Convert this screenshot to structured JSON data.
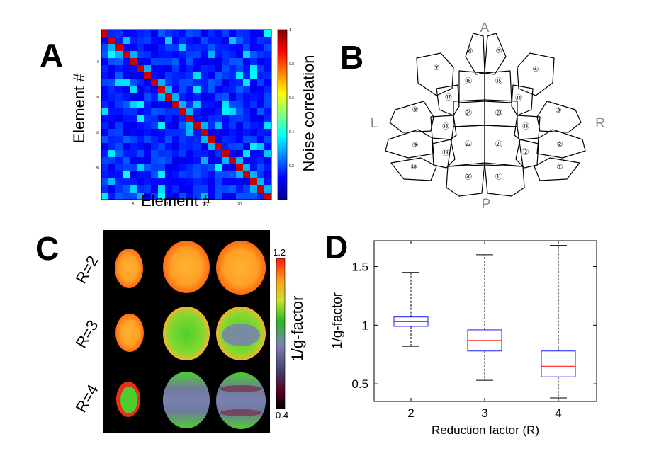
{
  "panels": {
    "a": {
      "letter": "A",
      "xlabel": "Element #",
      "ylabel": "Element #",
      "colorbar_label": "Noise correlation",
      "colorbar_ticks": [
        "1",
        "0.8",
        "0.6",
        "0.4",
        "0.2"
      ],
      "x_ticks": [
        "5",
        "10",
        "15",
        "20"
      ],
      "y_ticks": [
        "5",
        "10",
        "15",
        "20"
      ],
      "matrix_size": 24,
      "colormap": "jet"
    },
    "b": {
      "letter": "B",
      "dir_a": "A",
      "dir_p": "P",
      "dir_l": "L",
      "dir_r": "R",
      "elements": [
        "①",
        "②",
        "③",
        "④",
        "⑤",
        "⑥",
        "⑦",
        "⑧",
        "⑨",
        "⑩",
        "⑪",
        "⑫",
        "⑬",
        "⑭",
        "⑮",
        "⑯",
        "⑰",
        "⑱",
        "⑲",
        "⑳",
        "㉑",
        "㉒",
        "㉓",
        "㉔"
      ]
    },
    "c": {
      "letter": "C",
      "rows": [
        "R=2",
        "R=3",
        "R=4"
      ],
      "colorbar_label": "1/g-factor",
      "colorbar_max": "1.2",
      "colorbar_min": "0.4"
    },
    "d": {
      "letter": "D"
    }
  },
  "chart_data": {
    "type": "box",
    "xlabel": "Reduction factor (R)",
    "ylabel": "1/g-factor",
    "categories": [
      "2",
      "3",
      "4"
    ],
    "ylim": [
      0.35,
      1.72
    ],
    "yticks": [
      0.5,
      1,
      1.5
    ],
    "ytick_labels": [
      "0.5",
      "1",
      "1.5"
    ],
    "boxes": [
      {
        "label": "2",
        "whisker_low": 0.82,
        "q1": 0.99,
        "median": 1.03,
        "q3": 1.07,
        "whisker_high": 1.45
      },
      {
        "label": "3",
        "whisker_low": 0.53,
        "q1": 0.78,
        "median": 0.87,
        "q3": 0.96,
        "whisker_high": 1.6
      },
      {
        "label": "4",
        "whisker_low": 0.38,
        "q1": 0.56,
        "median": 0.65,
        "q3": 0.78,
        "whisker_high": 1.68
      }
    ],
    "colors": {
      "box": "#1a1aff",
      "median": "#ff0000",
      "whisker": "#000000"
    }
  }
}
